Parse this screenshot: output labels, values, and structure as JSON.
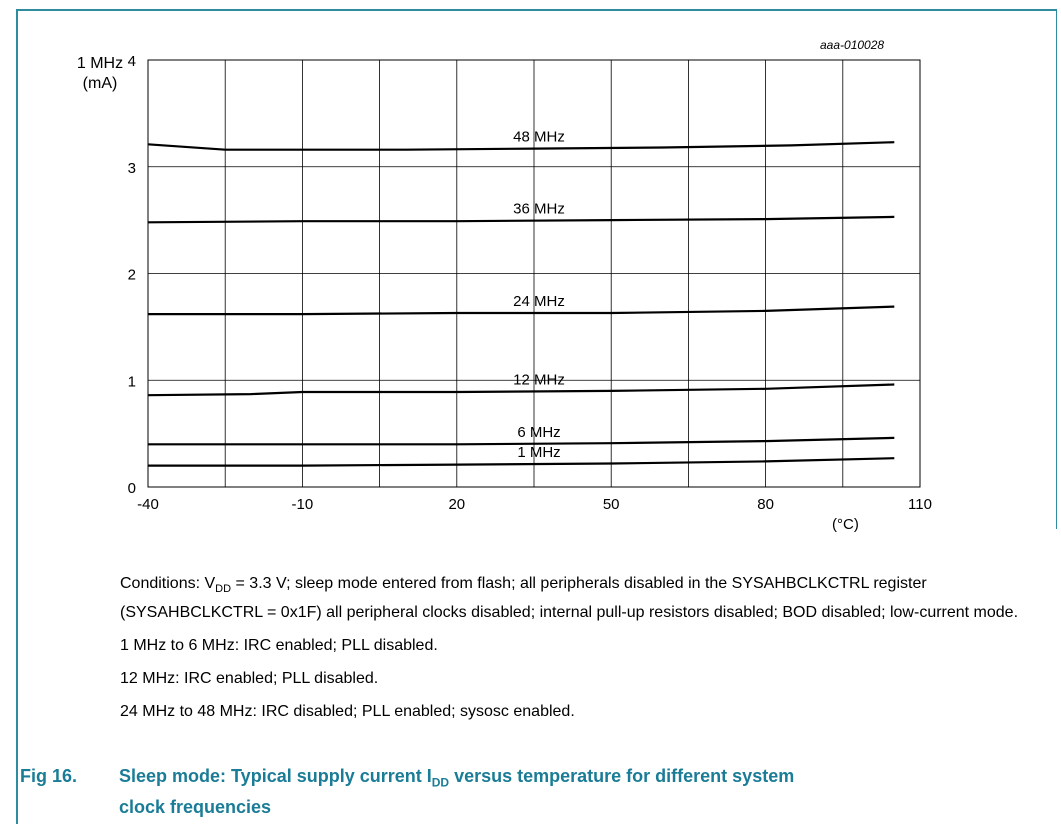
{
  "figure_id": "aaa-010028",
  "chart_data": {
    "type": "line",
    "ylabel_line1": "1 MHz",
    "ylabel_line2": "(mA)",
    "x_unit": "(°C)",
    "xlim": [
      -40,
      110
    ],
    "ylim": [
      0,
      4
    ],
    "xticks": [
      "-40",
      "-10",
      "20",
      "50",
      "80",
      "110"
    ],
    "yticks": [
      "0",
      "1",
      "2",
      "3",
      "4"
    ],
    "grid": true,
    "series": [
      {
        "name": "48 MHz",
        "x": [
          -40,
          -25,
          10,
          35,
          60,
          85,
          105
        ],
        "y": [
          3.21,
          3.16,
          3.16,
          3.17,
          3.18,
          3.2,
          3.23
        ]
      },
      {
        "name": "36 MHz",
        "x": [
          -40,
          -10,
          20,
          50,
          80,
          105
        ],
        "y": [
          2.48,
          2.49,
          2.49,
          2.5,
          2.51,
          2.53
        ]
      },
      {
        "name": "24 MHz",
        "x": [
          -40,
          -10,
          20,
          50,
          80,
          105
        ],
        "y": [
          1.62,
          1.62,
          1.63,
          1.63,
          1.65,
          1.69
        ]
      },
      {
        "name": "12 MHz",
        "x": [
          -40,
          -20,
          -10,
          20,
          50,
          80,
          105
        ],
        "y": [
          0.86,
          0.87,
          0.89,
          0.89,
          0.9,
          0.92,
          0.96
        ]
      },
      {
        "name": "6 MHz",
        "x": [
          -40,
          -10,
          20,
          50,
          80,
          105
        ],
        "y": [
          0.4,
          0.4,
          0.4,
          0.41,
          0.43,
          0.46
        ]
      },
      {
        "name": "1 MHz",
        "x": [
          -40,
          -10,
          20,
          50,
          80,
          105
        ],
        "y": [
          0.2,
          0.2,
          0.21,
          0.22,
          0.24,
          0.27
        ]
      }
    ]
  },
  "conditions": {
    "line1_a": "Conditions: V",
    "line1_sub": "DD",
    "line1_b": " = 3.3 V; sleep mode entered from flash; all peripherals disabled in the SYSAHBCLKCTRL register (SYSAHBCLKCTRL = 0x1F) all peripheral clocks disabled; internal pull-up resistors disabled; BOD disabled; low-current mode.",
    "line2": "1 MHz to 6 MHz: IRC enabled; PLL disabled.",
    "line3": "12 MHz: IRC enabled; PLL disabled.",
    "line4": "24 MHz to 48 MHz: IRC disabled; PLL enabled; sysosc enabled."
  },
  "caption": {
    "fig_no": "Fig 16.",
    "text_a": "Sleep mode: Typical supply current I",
    "text_sub": "DD",
    "text_b": " versus temperature for different system",
    "text_line2": "clock frequencies"
  }
}
